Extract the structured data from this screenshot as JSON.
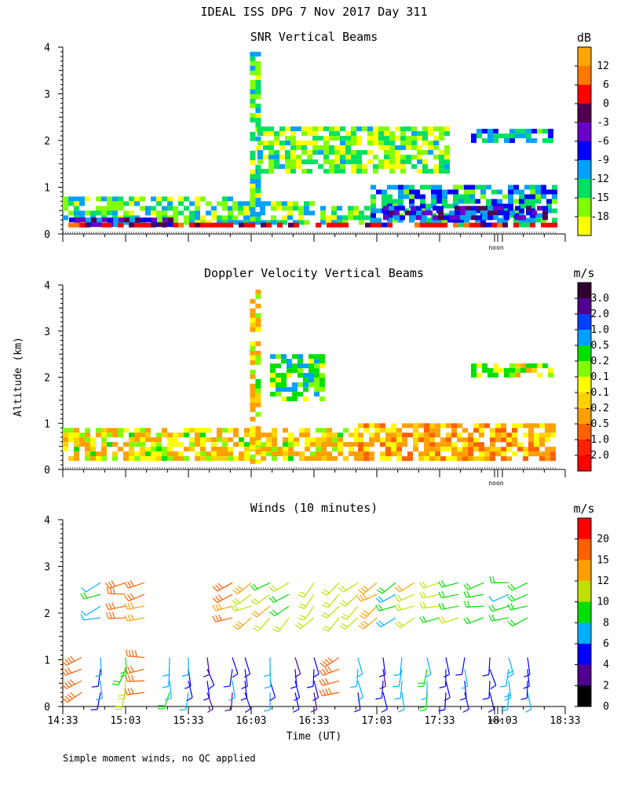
{
  "figure": {
    "title": "IDEAL ISS DPG    7 Nov 2017 Day 311",
    "shared_ylabel": "Altitude (km)",
    "xlabel": "Time (UT)",
    "footnote": "Simple moment winds, no QC applied",
    "noon_marker_label": "noon",
    "noon_time_hours": 18.0
  },
  "chart_data": [
    {
      "type": "heatmap",
      "title": "SNR Vertical Beams",
      "ylabel": "Altitude (km)",
      "xlim_hours": [
        14.55,
        18.55
      ],
      "ylim_km": [
        0,
        4
      ],
      "yticks": [
        "0",
        "1",
        "2",
        "3",
        "4"
      ],
      "colorbar": {
        "unit": "dB",
        "labels": [
          "12",
          "6",
          "0",
          "-3",
          "-6",
          "-9",
          "-12",
          "-15",
          "-18"
        ],
        "colors": [
          "#ffa500",
          "#ff7800",
          "#ff0000",
          "#500050",
          "#6a00c8",
          "#0000ff",
          "#00a0ff",
          "#00e060",
          "#80ff00",
          "#ffff00"
        ]
      },
      "regions": [
        {
          "t0": 14.55,
          "t1": 15.9,
          "z0": 0.2,
          "z1": 0.8,
          "value": -15
        },
        {
          "t0": 14.6,
          "t1": 15.4,
          "z0": 0.2,
          "z1": 0.35,
          "value": -6
        },
        {
          "t0": 15.9,
          "t1": 16.55,
          "z0": 0.2,
          "z1": 0.7,
          "value": -14
        },
        {
          "t0": 16.04,
          "t1": 16.1,
          "z0": 0.2,
          "z1": 3.9,
          "value": -15
        },
        {
          "t0": 16.6,
          "t1": 17.0,
          "z0": 0.2,
          "z1": 0.6,
          "value": -15
        },
        {
          "t0": 17.0,
          "t1": 18.45,
          "z0": 0.2,
          "z1": 1.05,
          "value": -11
        },
        {
          "t0": 17.1,
          "t1": 18.4,
          "z0": 0.3,
          "z1": 0.6,
          "value": -6
        },
        {
          "t0": 17.8,
          "t1": 18.45,
          "z0": 1.95,
          "z1": 2.25,
          "value": -11
        },
        {
          "t0": 16.1,
          "t1": 17.6,
          "z0": 1.3,
          "z1": 2.3,
          "value": -16
        },
        {
          "t0": 14.55,
          "t1": 18.45,
          "z0": 0.18,
          "z1": 0.24,
          "value": 3
        }
      ]
    },
    {
      "type": "heatmap",
      "title": "Doppler Velocity Vertical Beams",
      "ylabel": "Altitude (km)",
      "xlim_hours": [
        14.55,
        18.55
      ],
      "ylim_km": [
        0,
        4
      ],
      "yticks": [
        "0",
        "1",
        "2",
        "3",
        "4"
      ],
      "colorbar": {
        "unit": "m/s",
        "labels": [
          "3.0",
          "2.0",
          "1.0",
          "0.5",
          "0.2",
          "0.1",
          "-0.1",
          "-0.2",
          "-0.5",
          "-1.0",
          "-2.0"
        ],
        "colors": [
          "#300030",
          "#500090",
          "#0040ff",
          "#00a0ff",
          "#00e000",
          "#80ff00",
          "#ffff00",
          "#ffd000",
          "#ffa000",
          "#ff6000",
          "#ff2000",
          "#ff0000"
        ]
      },
      "regions": [
        {
          "t0": 14.55,
          "t1": 16.9,
          "z0": 0.2,
          "z1": 0.9,
          "value": -0.1
        },
        {
          "t0": 16.04,
          "t1": 16.1,
          "z0": 0.2,
          "z1": 3.9,
          "value": -0.1
        },
        {
          "t0": 16.9,
          "t1": 18.45,
          "z0": 0.2,
          "z1": 1.0,
          "value": -0.3
        },
        {
          "t0": 17.8,
          "t1": 18.45,
          "z0": 2.0,
          "z1": 2.3,
          "value": 0.1
        },
        {
          "t0": 16.2,
          "t1": 16.6,
          "z0": 1.5,
          "z1": 2.5,
          "value": 0.4
        }
      ]
    },
    {
      "type": "wind_barbs",
      "title": "Winds (10 minutes)",
      "ylabel": "Altitude (km)",
      "xlabel": "Time (UT)",
      "xlim_hours": [
        14.55,
        18.55
      ],
      "ylim_km": [
        0,
        4
      ],
      "xticks": [
        "14:33",
        "15:03",
        "15:33",
        "16:03",
        "16:33",
        "17:03",
        "17:33",
        "18:03",
        "18:33"
      ],
      "yticks": [
        "0",
        "1",
        "2",
        "3",
        "4"
      ],
      "colorbar": {
        "unit": "m/s",
        "labels": [
          "20",
          "15",
          "12",
          "10",
          "8",
          "6",
          "4",
          "2",
          "0"
        ],
        "colors": [
          "#ff0000",
          "#ff6000",
          "#ffa000",
          "#c0e000",
          "#00e000",
          "#00b0ff",
          "#0000ff",
          "#500090",
          "#000000"
        ]
      },
      "low_layer": {
        "times_hours": [
          14.7,
          14.85,
          15.05,
          15.2,
          15.4,
          15.55,
          15.7,
          15.9,
          16.0,
          16.2,
          16.4,
          16.55,
          16.75,
          16.9,
          17.1,
          17.25,
          17.45,
          17.6,
          17.75,
          17.95,
          18.1,
          18.25
        ],
        "altitudes_km": [
          0.3,
          0.55,
          0.8,
          1.05
        ],
        "speed_ms": [
          18,
          6,
          9,
          17,
          8,
          6,
          5,
          5,
          5,
          6,
          5,
          5,
          18,
          6,
          5,
          6,
          7,
          5,
          5,
          5,
          7,
          5
        ],
        "direction_deg": [
          250,
          180,
          190,
          260,
          185,
          175,
          170,
          175,
          170,
          175,
          170,
          175,
          250,
          175,
          170,
          175,
          180,
          170,
          175,
          170,
          175,
          170
        ]
      },
      "upper_layer": {
        "times_hours": [
          14.85,
          15.05,
          15.2,
          15.9,
          16.05,
          16.2,
          16.35,
          16.55,
          16.75,
          16.9,
          17.05,
          17.2,
          17.35,
          17.55,
          17.7,
          17.9,
          18.1,
          18.25
        ],
        "altitudes_km": [
          1.9,
          2.15,
          2.4,
          2.65
        ],
        "speed_ms": [
          7,
          16,
          16,
          15,
          13,
          11,
          10,
          10,
          11,
          11,
          14,
          9,
          12,
          10,
          9,
          9,
          8,
          9
        ],
        "direction_deg": [
          250,
          260,
          260,
          250,
          240,
          235,
          230,
          225,
          225,
          230,
          235,
          240,
          250,
          255,
          255,
          255,
          255,
          255
        ]
      }
    }
  ]
}
